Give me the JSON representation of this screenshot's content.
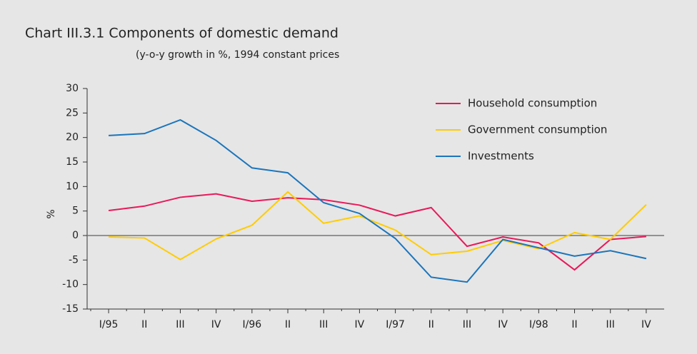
{
  "chart_data": {
    "type": "line",
    "title": "Chart III.3.1  Components of domestic demand",
    "subtitle": "(y-o-y growth in %, 1994 constant prices",
    "y_label": "%",
    "categories": [
      "I/95",
      "II",
      "III",
      "IV",
      "I/96",
      "II",
      "III",
      "IV",
      "I/97",
      "II",
      "III",
      "IV",
      "I/98",
      "II",
      "III",
      "IV"
    ],
    "series": [
      {
        "name": "Household consumption",
        "color": "#e8195a",
        "values": [
          5.1,
          6.0,
          7.8,
          8.5,
          7.0,
          7.7,
          7.3,
          6.2,
          4.0,
          5.7,
          -2.2,
          -0.3,
          -1.5,
          -7.0,
          -0.8,
          -0.2
        ]
      },
      {
        "name": "Government consumption",
        "color": "#ffcc00",
        "values": [
          -0.3,
          -0.5,
          -4.9,
          -0.7,
          2.1,
          8.9,
          2.5,
          4.0,
          1.1,
          -3.9,
          -3.2,
          -1.0,
          -2.7,
          0.6,
          -0.8,
          6.3
        ]
      },
      {
        "name": "Investments",
        "color": "#1b75bc",
        "values": [
          20.4,
          20.8,
          23.6,
          19.4,
          13.8,
          12.8,
          6.7,
          4.5,
          -0.6,
          -8.5,
          -9.5,
          -0.8,
          -2.5,
          -4.2,
          -3.1,
          -4.7
        ]
      }
    ],
    "ylim": [
      -15,
      30
    ],
    "yticks": [
      30,
      25,
      20,
      15,
      10,
      5,
      0,
      -5,
      -10,
      -15
    ],
    "legend": "upper right"
  }
}
